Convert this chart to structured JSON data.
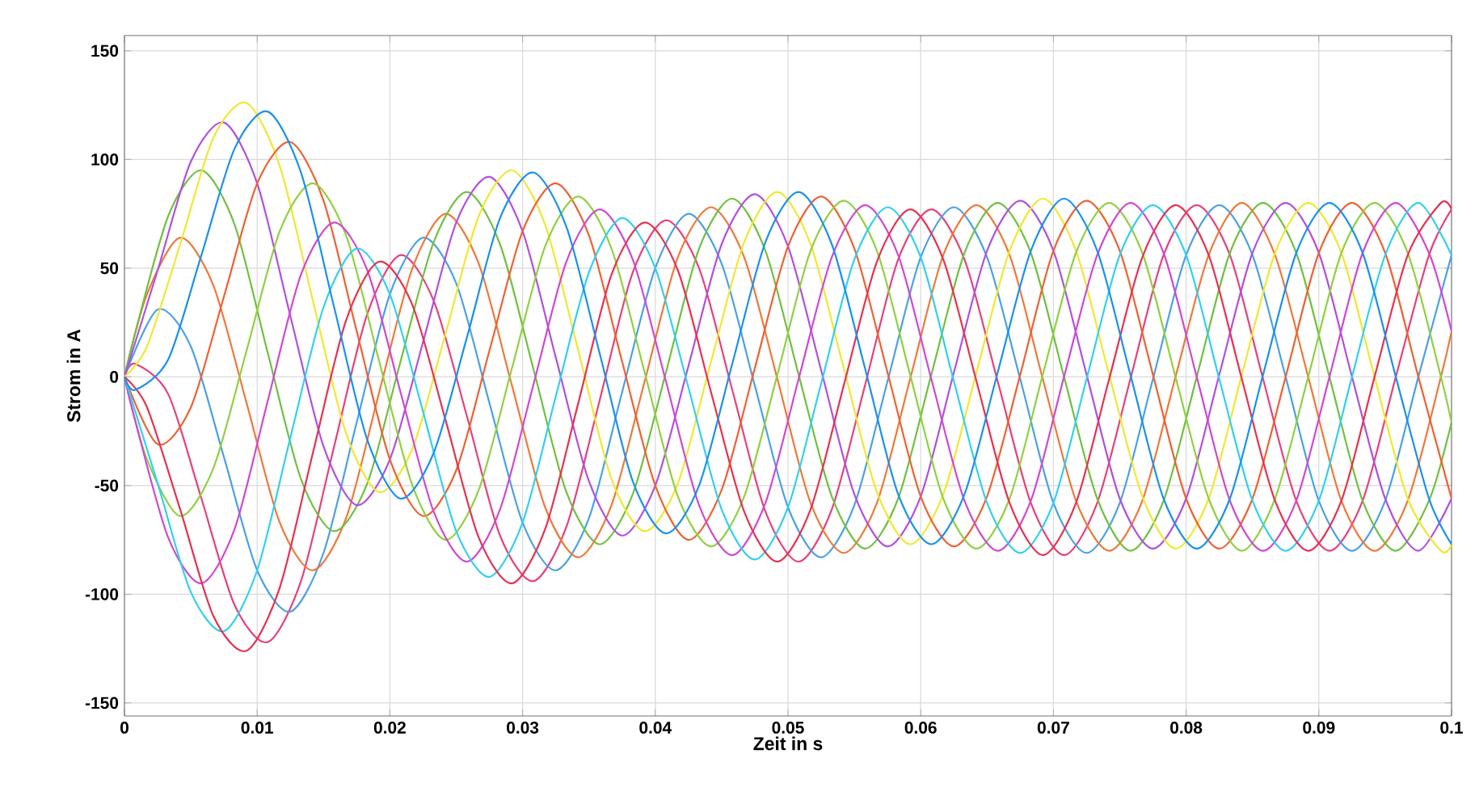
{
  "chart_data": {
    "type": "line",
    "xlabel": "Zeit in s",
    "ylabel": "Strom in A",
    "xlim": [
      0,
      0.1
    ],
    "ylim": [
      -156,
      157
    ],
    "xticks": [
      0,
      0.01,
      0.02,
      0.03,
      0.04,
      0.05,
      0.06,
      0.07,
      0.08,
      0.09,
      0.1
    ],
    "yticks": [
      -150,
      -100,
      -50,
      0,
      50,
      100,
      150
    ],
    "grid": true,
    "series": [
      {
        "color": "#e8407a",
        "x": [
          0,
          0.0008,
          0.0033,
          0.0058,
          0.0083,
          0.0108,
          0.0133,
          0.0158,
          0.0183,
          0.0208,
          0.0233,
          0.0258,
          0.0283,
          0.0308,
          0.0333,
          0.0358,
          0.0383,
          0.0408,
          0.0433,
          0.0458,
          0.0483,
          0.0508,
          0.0533,
          0.0558,
          0.0583,
          0.0608,
          0.0633,
          0.0658,
          0.0683,
          0.0708,
          0.0733,
          0.0758,
          0.0783,
          0.0808,
          0.0833,
          0.0858,
          0.0883,
          0.0908,
          0.0933,
          0.0958,
          0.0983,
          0.1
        ],
        "values": [
          0,
          6,
          -8,
          -56,
          -105,
          -122,
          -94,
          -32,
          29,
          56,
          35,
          -18,
          -73,
          -94,
          -69,
          -11,
          48,
          72,
          50,
          -6,
          -62,
          -85,
          -61,
          -4,
          54,
          77,
          54,
          -2,
          -58,
          -82,
          -58,
          -1,
          56,
          79,
          56,
          -1,
          -57,
          -80,
          -57,
          0,
          56,
          77
        ]
      },
      {
        "color": "#4aa0e8",
        "x": [
          0,
          0.0025,
          0.005,
          0.0075,
          0.01,
          0.0125,
          0.015,
          0.0175,
          0.02,
          0.0225,
          0.025,
          0.0275,
          0.03,
          0.0325,
          0.035,
          0.0375,
          0.04,
          0.0425,
          0.045,
          0.0475,
          0.05,
          0.0525,
          0.055,
          0.0575,
          0.06,
          0.0625,
          0.065,
          0.0675,
          0.07,
          0.0725,
          0.075,
          0.0775,
          0.08,
          0.0825,
          0.085,
          0.0875,
          0.09,
          0.0925,
          0.095,
          0.0975,
          0.1
        ],
        "values": [
          0,
          31,
          14,
          -37,
          -89,
          -108,
          -81,
          -21,
          38,
          64,
          43,
          -12,
          -67,
          -89,
          -65,
          -7,
          50,
          75,
          52,
          -4,
          -60,
          -83,
          -59,
          -2,
          55,
          78,
          55,
          -1,
          -58,
          -81,
          -58,
          -1,
          56,
          79,
          56,
          0,
          -57,
          -80,
          -57,
          0,
          56
        ]
      },
      {
        "color": "#f07838",
        "x": [
          0,
          0.0017,
          0.0042,
          0.0067,
          0.0092,
          0.0117,
          0.0142,
          0.0167,
          0.0192,
          0.0217,
          0.0242,
          0.0267,
          0.0292,
          0.0317,
          0.0342,
          0.0367,
          0.0392,
          0.0417,
          0.0442,
          0.0467,
          0.0492,
          0.0517,
          0.0542,
          0.0567,
          0.0592,
          0.0617,
          0.0642,
          0.0667,
          0.0692,
          0.0717,
          0.0742,
          0.0767,
          0.0792,
          0.0817,
          0.0842,
          0.0867,
          0.0892,
          0.0917,
          0.0942,
          0.0967,
          0.0992,
          0.1
        ],
        "values": [
          0,
          38,
          64,
          42,
          -12,
          -67,
          -89,
          -65,
          -7,
          50,
          75,
          52,
          -4,
          -60,
          -83,
          -59,
          -2,
          55,
          78,
          55,
          -1,
          -58,
          -81,
          -58,
          -1,
          56,
          79,
          56,
          -1,
          -57,
          -80,
          -57,
          0,
          56,
          80,
          56,
          0,
          -57,
          -80,
          -57,
          0,
          21
        ]
      },
      {
        "color": "#70c040",
        "x": [
          0,
          0.0008,
          0.0033,
          0.0058,
          0.0083,
          0.0108,
          0.0133,
          0.0158,
          0.0183,
          0.0208,
          0.0233,
          0.0258,
          0.0283,
          0.0308,
          0.0333,
          0.0358,
          0.0383,
          0.0408,
          0.0433,
          0.0458,
          0.0483,
          0.0508,
          0.0533,
          0.0558,
          0.0583,
          0.0608,
          0.0633,
          0.0658,
          0.0683,
          0.0708,
          0.0733,
          0.0758,
          0.0783,
          0.0808,
          0.0833,
          0.0858,
          0.0883,
          0.0908,
          0.0933,
          0.0958,
          0.0983,
          0.1
        ],
        "values": [
          0,
          20,
          74,
          95,
          70,
          11,
          -47,
          -71,
          -49,
          7,
          62,
          85,
          61,
          4,
          -53,
          -77,
          -54,
          2,
          59,
          82,
          58,
          1,
          -55,
          -79,
          -56,
          1,
          57,
          80,
          57,
          0,
          -56,
          -80,
          -57,
          0,
          57,
          80,
          57,
          0,
          -57,
          -80,
          -57,
          -21
        ]
      },
      {
        "color": "#b050e0",
        "x": [
          0,
          0.0025,
          0.005,
          0.0075,
          0.01,
          0.0125,
          0.015,
          0.0175,
          0.02,
          0.0225,
          0.025,
          0.0275,
          0.03,
          0.0325,
          0.035,
          0.0375,
          0.04,
          0.0425,
          0.045,
          0.0475,
          0.05,
          0.0525,
          0.055,
          0.0575,
          0.06,
          0.0625,
          0.065,
          0.0675,
          0.07,
          0.0725,
          0.075,
          0.0775,
          0.08,
          0.0825,
          0.085,
          0.0875,
          0.09,
          0.0925,
          0.095,
          0.0975,
          0.1
        ],
        "values": [
          0,
          49,
          99,
          117,
          89,
          28,
          -32,
          -59,
          -38,
          16,
          71,
          92,
          67,
          9,
          -48,
          -73,
          -50,
          5,
          61,
          84,
          60,
          3,
          -54,
          -78,
          -55,
          2,
          58,
          81,
          58,
          1,
          -56,
          -79,
          -56,
          1,
          57,
          80,
          57,
          0,
          -56,
          -80,
          -56
        ]
      },
      {
        "color": "#f0e830",
        "x": [
          0,
          0.0017,
          0.0042,
          0.0067,
          0.0092,
          0.0117,
          0.0142,
          0.0167,
          0.0192,
          0.0217,
          0.0242,
          0.0267,
          0.0292,
          0.0317,
          0.0342,
          0.0367,
          0.0392,
          0.0417,
          0.0442,
          0.0467,
          0.0492,
          0.0517,
          0.0542,
          0.0567,
          0.0592,
          0.0617,
          0.0642,
          0.0667,
          0.0692,
          0.0717,
          0.0742,
          0.0767,
          0.0792,
          0.0817,
          0.0842,
          0.0867,
          0.0892,
          0.0917,
          0.0942,
          0.0967,
          0.0992,
          0.1
        ],
        "values": [
          0,
          14,
          61,
          110,
          126,
          97,
          35,
          -26,
          -53,
          -33,
          20,
          74,
          95,
          70,
          12,
          -47,
          -71,
          -49,
          7,
          62,
          85,
          61,
          4,
          -53,
          -77,
          -54,
          2,
          58,
          82,
          58,
          1,
          -55,
          -79,
          -56,
          1,
          57,
          80,
          57,
          0,
          -56,
          -80,
          -77
        ]
      },
      {
        "color": "#f06030",
        "x": [
          0,
          0.0025,
          0.005,
          0.0075,
          0.01,
          0.0125,
          0.015,
          0.0175,
          0.02,
          0.0225,
          0.025,
          0.0275,
          0.03,
          0.0325,
          0.035,
          0.0375,
          0.04,
          0.0425,
          0.045,
          0.0475,
          0.05,
          0.0525,
          0.055,
          0.0575,
          0.06,
          0.0625,
          0.065,
          0.0675,
          0.07,
          0.0725,
          0.075,
          0.0775,
          0.08,
          0.0825,
          0.085,
          0.0875,
          0.09,
          0.0925,
          0.095,
          0.0975,
          0.1
        ],
        "values": [
          0,
          -31,
          -14,
          37,
          89,
          108,
          81,
          21,
          -38,
          -64,
          -43,
          12,
          67,
          89,
          65,
          7,
          -50,
          -75,
          -52,
          4,
          60,
          83,
          59,
          2,
          -55,
          -78,
          -55,
          1,
          58,
          81,
          58,
          1,
          -56,
          -79,
          -56,
          0,
          57,
          80,
          57,
          0,
          -56
        ]
      },
      {
        "color": "#90d040",
        "x": [
          0,
          0.0017,
          0.0042,
          0.0067,
          0.0092,
          0.0117,
          0.0142,
          0.0167,
          0.0192,
          0.0217,
          0.0242,
          0.0267,
          0.0292,
          0.0317,
          0.0342,
          0.0367,
          0.0392,
          0.0417,
          0.0442,
          0.0467,
          0.0492,
          0.0517,
          0.0542,
          0.0567,
          0.0592,
          0.0617,
          0.0642,
          0.0667,
          0.0692,
          0.0717,
          0.0742,
          0.0767,
          0.0792,
          0.0817,
          0.0842,
          0.0867,
          0.0892,
          0.0917,
          0.0942,
          0.0967,
          0.0992,
          0.1
        ],
        "values": [
          0,
          -38,
          -64,
          -42,
          12,
          67,
          89,
          65,
          7,
          -50,
          -75,
          -52,
          4,
          60,
          83,
          59,
          2,
          -55,
          -78,
          -55,
          1,
          58,
          81,
          58,
          1,
          -56,
          -79,
          -56,
          1,
          57,
          80,
          57,
          0,
          -56,
          -80,
          -56,
          0,
          57,
          80,
          57,
          0,
          -21
        ]
      },
      {
        "color": "#d048d0",
        "x": [
          0,
          0.0008,
          0.0033,
          0.0058,
          0.0083,
          0.0108,
          0.0133,
          0.0158,
          0.0183,
          0.0208,
          0.0233,
          0.0258,
          0.0283,
          0.0308,
          0.0333,
          0.0358,
          0.0383,
          0.0408,
          0.0433,
          0.0458,
          0.0483,
          0.0508,
          0.0533,
          0.0558,
          0.0583,
          0.0608,
          0.0633,
          0.0658,
          0.0683,
          0.0708,
          0.0733,
          0.0758,
          0.0783,
          0.0808,
          0.0833,
          0.0858,
          0.0883,
          0.0908,
          0.0933,
          0.0958,
          0.0983,
          0.1
        ],
        "values": [
          0,
          -20,
          -74,
          -95,
          -70,
          -11,
          47,
          71,
          49,
          -7,
          -62,
          -85,
          -61,
          -4,
          53,
          77,
          54,
          -2,
          -59,
          -82,
          -58,
          -1,
          55,
          79,
          56,
          -1,
          -57,
          -80,
          -57,
          0,
          56,
          80,
          57,
          0,
          -57,
          -80,
          -57,
          0,
          57,
          80,
          57,
          21
        ]
      },
      {
        "color": "#30d0f0",
        "x": [
          0,
          0.0025,
          0.005,
          0.0075,
          0.01,
          0.0125,
          0.015,
          0.0175,
          0.02,
          0.0225,
          0.025,
          0.0275,
          0.03,
          0.0325,
          0.035,
          0.0375,
          0.04,
          0.0425,
          0.045,
          0.0475,
          0.05,
          0.0525,
          0.055,
          0.0575,
          0.06,
          0.0625,
          0.065,
          0.0675,
          0.07,
          0.0725,
          0.075,
          0.0775,
          0.08,
          0.0825,
          0.085,
          0.0875,
          0.09,
          0.0925,
          0.095,
          0.0975,
          0.1
        ],
        "values": [
          0,
          -49,
          -99,
          -117,
          -89,
          -28,
          32,
          59,
          38,
          -16,
          -71,
          -92,
          -67,
          -9,
          48,
          73,
          50,
          -5,
          -61,
          -84,
          -60,
          -3,
          54,
          78,
          55,
          -2,
          -58,
          -81,
          -58,
          -1,
          56,
          79,
          56,
          -1,
          -57,
          -80,
          -57,
          0,
          56,
          80,
          56
        ]
      },
      {
        "color": "#e83050",
        "x": [
          0,
          0.0017,
          0.0042,
          0.0067,
          0.0092,
          0.0117,
          0.0142,
          0.0167,
          0.0192,
          0.0217,
          0.0242,
          0.0267,
          0.0292,
          0.0317,
          0.0342,
          0.0367,
          0.0392,
          0.0417,
          0.0442,
          0.0467,
          0.0492,
          0.0517,
          0.0542,
          0.0567,
          0.0592,
          0.0617,
          0.0642,
          0.0667,
          0.0692,
          0.0717,
          0.0742,
          0.0767,
          0.0792,
          0.0817,
          0.0842,
          0.0867,
          0.0892,
          0.0917,
          0.0942,
          0.0967,
          0.0992,
          0.1
        ],
        "values": [
          0,
          -14,
          -61,
          -110,
          -126,
          -97,
          -35,
          26,
          53,
          33,
          -20,
          -74,
          -95,
          -70,
          -12,
          47,
          71,
          49,
          -7,
          -62,
          -85,
          -61,
          -4,
          53,
          77,
          54,
          -2,
          -58,
          -82,
          -58,
          -1,
          55,
          79,
          56,
          -1,
          -57,
          -80,
          -57,
          0,
          56,
          80,
          77
        ]
      },
      {
        "color": "#1a90f0",
        "x": [
          0,
          0.0008,
          0.0033,
          0.0058,
          0.0083,
          0.0108,
          0.0133,
          0.0158,
          0.0183,
          0.0208,
          0.0233,
          0.0258,
          0.0283,
          0.0308,
          0.0333,
          0.0358,
          0.0383,
          0.0408,
          0.0433,
          0.0458,
          0.0483,
          0.0508,
          0.0533,
          0.0558,
          0.0583,
          0.0608,
          0.0633,
          0.0658,
          0.0683,
          0.0708,
          0.0733,
          0.0758,
          0.0783,
          0.0808,
          0.0833,
          0.0858,
          0.0883,
          0.0908,
          0.0933,
          0.0958,
          0.0983,
          0.1
        ],
        "values": [
          0,
          -6,
          8,
          56,
          105,
          122,
          94,
          32,
          -29,
          -56,
          -35,
          18,
          73,
          94,
          69,
          11,
          -48,
          -72,
          -50,
          6,
          62,
          85,
          61,
          4,
          -54,
          -77,
          -54,
          2,
          58,
          82,
          58,
          1,
          -56,
          -79,
          -56,
          1,
          57,
          80,
          57,
          0,
          -56,
          -77
        ]
      }
    ]
  }
}
